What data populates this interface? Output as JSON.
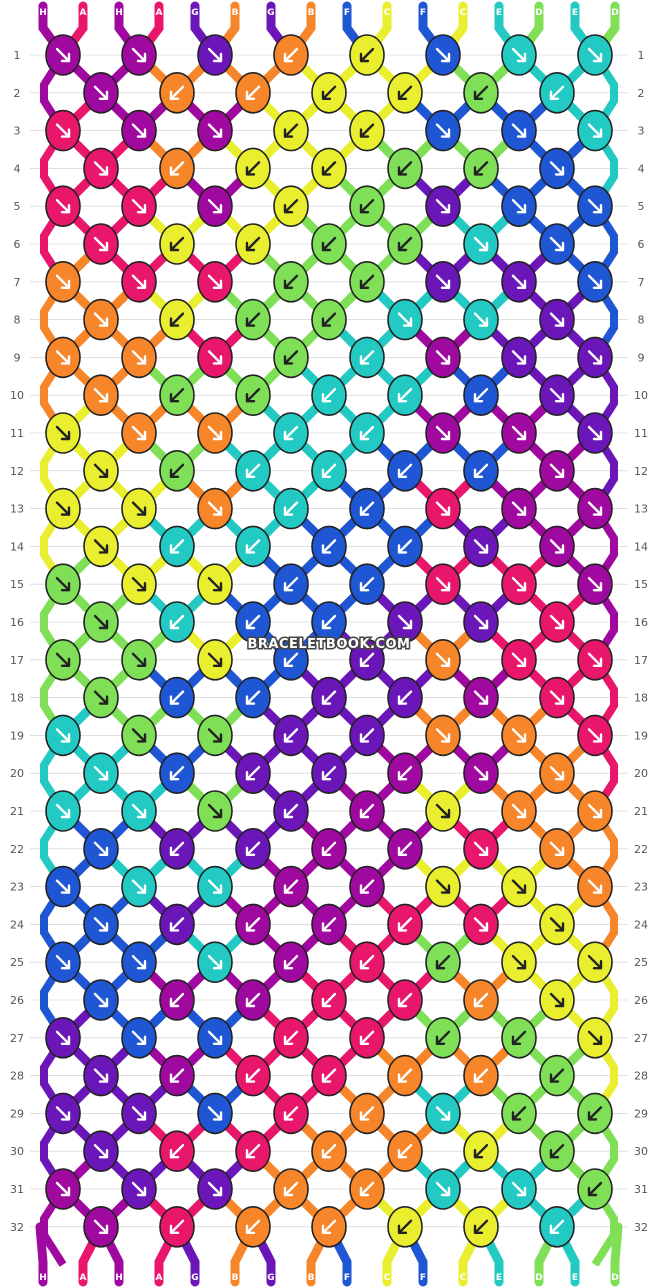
{
  "site": {
    "watermark": "BRACELETBOOK.COM"
  },
  "pattern": {
    "rows": 32,
    "columns_odd_rows": 8,
    "columns_even_rows": 7,
    "row_labels": [
      "1",
      "2",
      "3",
      "4",
      "5",
      "6",
      "7",
      "8",
      "9",
      "10",
      "11",
      "12",
      "13",
      "14",
      "15",
      "16",
      "17",
      "18",
      "19",
      "20",
      "21",
      "22",
      "23",
      "24",
      "25",
      "26",
      "27",
      "28",
      "29",
      "30",
      "31",
      "32"
    ],
    "strand_labels_top": [
      "H",
      "A",
      "H",
      "A",
      "G",
      "B",
      "G",
      "B",
      "F",
      "C",
      "F",
      "C",
      "E",
      "D",
      "E",
      "D"
    ],
    "strand_labels_bottom": [
      "H",
      "A",
      "H",
      "A",
      "G",
      "B",
      "G",
      "B",
      "F",
      "C",
      "F",
      "C",
      "E",
      "D",
      "E",
      "D"
    ],
    "colors": {
      "A": "#e8176b",
      "B": "#f7862b",
      "C": "#e9ef2e",
      "D": "#7fe058",
      "E": "#23cac4",
      "F": "#1f56d3",
      "G": "#6b16b8",
      "H": "#a0099f"
    },
    "dark_arrow_colors": [
      "C",
      "D"
    ],
    "knots": [
      [
        "HR",
        "HR",
        "GR",
        "BL",
        "CL",
        "FR",
        "ER",
        "ER"
      ],
      [
        "HR",
        "BL",
        "BL",
        "CL",
        "CL",
        "DL",
        "EL"
      ],
      [
        "AR",
        "HR",
        "HR",
        "CL",
        "CL",
        "FR",
        "FR",
        "ER"
      ],
      [
        "AR",
        "BL",
        "CL",
        "CL",
        "DL",
        "DL",
        "FR"
      ],
      [
        "AR",
        "AR",
        "HR",
        "CL",
        "DL",
        "GR",
        "FR",
        "FR"
      ],
      [
        "AR",
        "CL",
        "CL",
        "DL",
        "DL",
        "ER",
        "FR"
      ],
      [
        "BR",
        "AR",
        "AR",
        "DL",
        "DL",
        "GR",
        "GR",
        "FR"
      ],
      [
        "BR",
        "CL",
        "DL",
        "DL",
        "ER",
        "ER",
        "GR"
      ],
      [
        "BR",
        "BR",
        "AR",
        "DL",
        "EL",
        "HR",
        "GR",
        "GR"
      ],
      [
        "BR",
        "DL",
        "DL",
        "EL",
        "EL",
        "FL",
        "GR"
      ],
      [
        "CR",
        "BR",
        "BR",
        "EL",
        "EL",
        "HR",
        "HR",
        "GR"
      ],
      [
        "CR",
        "DL",
        "EL",
        "EL",
        "FL",
        "FL",
        "HR"
      ],
      [
        "CR",
        "CR",
        "BR",
        "EL",
        "FL",
        "AR",
        "HR",
        "HR"
      ],
      [
        "CR",
        "EL",
        "EL",
        "FL",
        "FL",
        "GR",
        "HR"
      ],
      [
        "DR",
        "CR",
        "CR",
        "FL",
        "FL",
        "AR",
        "AR",
        "HR"
      ],
      [
        "DR",
        "EL",
        "FL",
        "FL",
        "GR",
        "GR",
        "AR"
      ],
      [
        "DR",
        "DR",
        "CR",
        "FL",
        "GL",
        "BR",
        "AR",
        "AR"
      ],
      [
        "DR",
        "FL",
        "FL",
        "GL",
        "GL",
        "HR",
        "AR"
      ],
      [
        "ER",
        "DR",
        "DR",
        "GL",
        "GL",
        "BR",
        "BR",
        "AR"
      ],
      [
        "ER",
        "FL",
        "GL",
        "GL",
        "HL",
        "HR",
        "BR"
      ],
      [
        "ER",
        "ER",
        "DR",
        "GL",
        "HL",
        "CR",
        "BR",
        "BR"
      ],
      [
        "FR",
        "GL",
        "GL",
        "HL",
        "HL",
        "AR",
        "BR"
      ],
      [
        "FR",
        "ER",
        "ER",
        "HL",
        "HL",
        "CR",
        "CR",
        "BR"
      ],
      [
        "FR",
        "GL",
        "HL",
        "HL",
        "AL",
        "AR",
        "CR"
      ],
      [
        "FR",
        "FR",
        "ER",
        "HL",
        "AL",
        "DL",
        "CR",
        "CR"
      ],
      [
        "FR",
        "HL",
        "HL",
        "AL",
        "AL",
        "BL",
        "CR"
      ],
      [
        "GR",
        "FR",
        "FR",
        "AL",
        "AL",
        "DL",
        "DL",
        "CR"
      ],
      [
        "GR",
        "HL",
        "AL",
        "AL",
        "BL",
        "BL",
        "DL"
      ],
      [
        "GR",
        "GR",
        "FR",
        "AL",
        "BL",
        "ER",
        "DL",
        "DL"
      ],
      [
        "GR",
        "AL",
        "AL",
        "BL",
        "BL",
        "CL",
        "DL"
      ],
      [
        "HR",
        "GR",
        "GR",
        "BL",
        "BL",
        "ER",
        "ER",
        "DL"
      ],
      [
        "HR",
        "AL",
        "BL",
        "BL",
        "CL",
        "CL",
        "EL"
      ]
    ]
  }
}
